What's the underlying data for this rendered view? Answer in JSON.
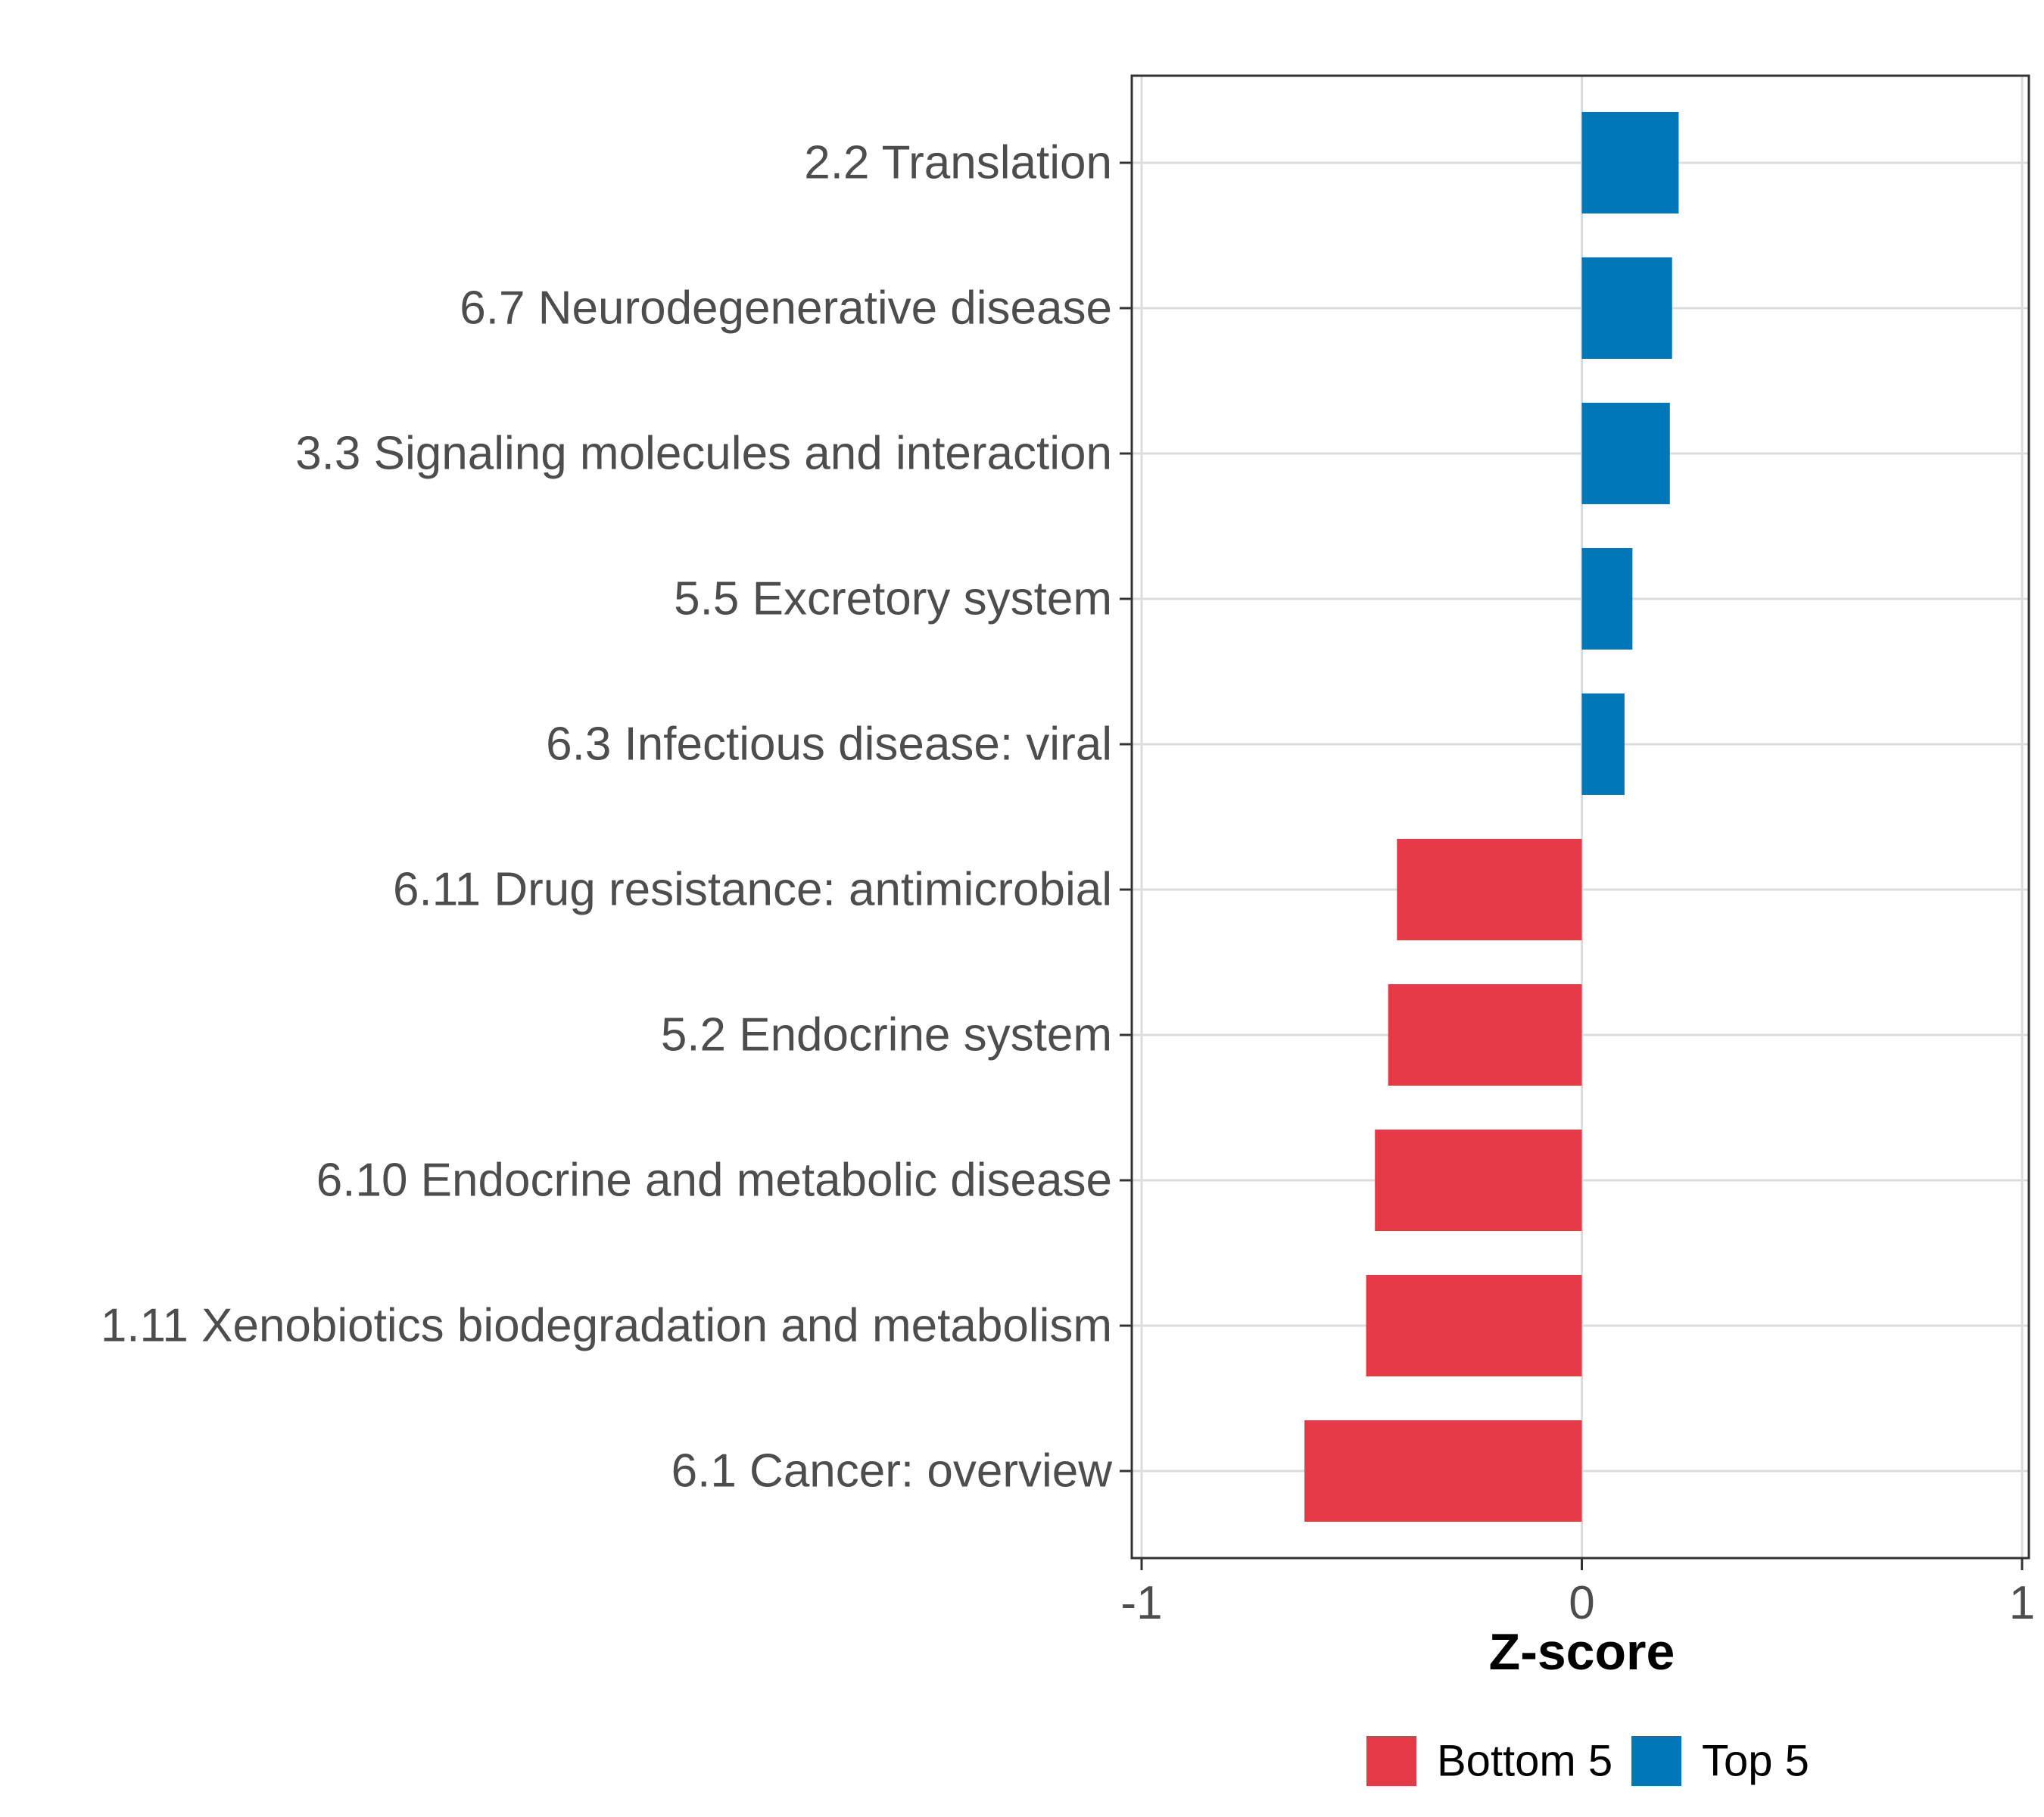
{
  "chart_data": {
    "type": "bar",
    "orientation": "horizontal",
    "xlabel": "Z-score",
    "xlim": [
      -1,
      1
    ],
    "xticks": [
      "-1",
      "0",
      "1"
    ],
    "categories": [
      "2.2 Translation",
      "6.7 Neurodegenerative disease",
      "3.3 Signaling molecules and interaction",
      "5.5 Excretory system",
      "6.3 Infectious disease: viral",
      "6.11 Drug resistance: antimicrobial",
      "5.2 Endocrine system",
      "6.10 Endocrine and metabolic disease",
      "1.11 Xenobiotics biodegradation and metabolism",
      "6.1 Cancer: overview"
    ],
    "values": [
      0.22,
      0.205,
      0.2,
      0.115,
      0.097,
      -0.42,
      -0.44,
      -0.47,
      -0.49,
      -0.63
    ],
    "groups": [
      "Top 5",
      "Top 5",
      "Top 5",
      "Top 5",
      "Top 5",
      "Bottom 5",
      "Bottom 5",
      "Bottom 5",
      "Bottom 5",
      "Bottom 5"
    ],
    "legend": [
      {
        "label": "Bottom 5",
        "color": "#e63946"
      },
      {
        "label": "Top 5",
        "color": "#0077b6"
      }
    ],
    "grid": true,
    "legend_position": "bottom"
  }
}
